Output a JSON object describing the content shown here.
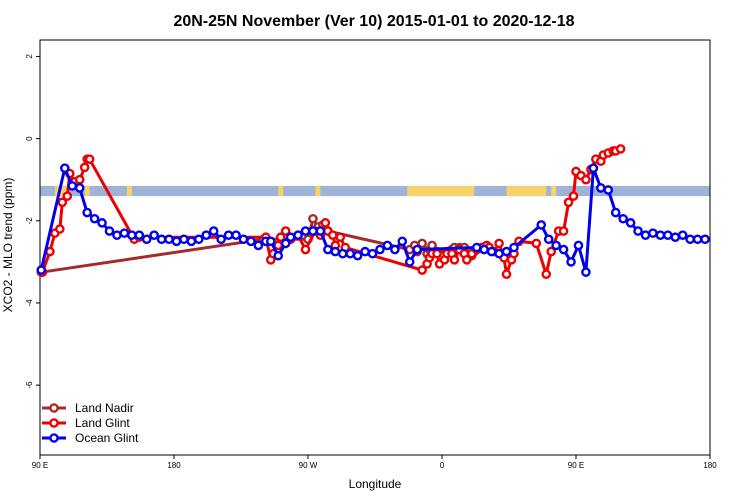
{
  "chart_data": {
    "type": "line",
    "title": "20N-25N November (Ver 10)   2015-01-01 to 2020-12-18",
    "xlabel": "Longitude",
    "ylabel": "XCO2 - MLO trend (ppm)",
    "xlim": [
      -90,
      180
    ],
    "ylim": [
      -7.7,
      2.4
    ],
    "x_ticks": [
      {
        "value": -90,
        "label": "90 E"
      },
      {
        "value": -36,
        "label": "180"
      },
      {
        "value": 18,
        "label": "90 W"
      },
      {
        "value": 72,
        "label": "0"
      },
      {
        "value": 126,
        "label": "90 E"
      },
      {
        "value": 180,
        "label": "180"
      }
    ],
    "y_ticks": [
      {
        "value": 2,
        "label": "2"
      },
      {
        "value": 0,
        "label": "0"
      },
      {
        "value": -2,
        "label": "-2"
      },
      {
        "value": -4,
        "label": "-4"
      },
      {
        "value": -6,
        "label": "-6"
      }
    ],
    "land_strip": {
      "y_top": -1.15,
      "y_bottom": -1.4,
      "ocean_color": "#9fb3d6",
      "land_color": "#f6d36a",
      "land_ranges": [
        [
          -84,
          -79
        ],
        [
          -72,
          -70
        ],
        [
          -55,
          -53
        ],
        [
          6,
          8
        ],
        [
          21,
          23
        ],
        [
          58,
          85
        ],
        [
          98,
          114
        ],
        [
          116,
          118
        ]
      ]
    },
    "series": [
      {
        "name": "Land Nadir",
        "color": "#a52a2a",
        "x": [
          -89.5,
          0,
          18,
          20,
          22,
          24,
          25,
          26,
          59,
          61,
          62,
          64,
          66,
          67,
          68,
          70,
          74,
          76,
          77,
          79,
          81,
          84,
          85
        ],
        "y": [
          -3.25,
          -2.45,
          -2.45,
          -1.95,
          -2.15,
          -2.1,
          -2.2,
          -2.25,
          -2.7,
          -2.6,
          -2.75,
          -2.55,
          -2.8,
          -2.7,
          -2.6,
          -2.75,
          -2.75,
          -2.7,
          -2.65,
          -2.65,
          -2.65,
          -2.85,
          -2.75
        ]
      },
      {
        "name": "Land Glint",
        "color": "#ee0000",
        "x": [
          -89,
          -86,
          -84,
          -82,
          -81,
          -79,
          -78,
          -76,
          -74,
          -72,
          -71,
          -70,
          -52,
          -50,
          1,
          3,
          4,
          6,
          7,
          9,
          11,
          14,
          17,
          21,
          23,
          25,
          26,
          28,
          29,
          31,
          33,
          64,
          66,
          67,
          68,
          70,
          71,
          73,
          74,
          76,
          77,
          79,
          81,
          82,
          84,
          86,
          88,
          90,
          91,
          93,
          95,
          97,
          98,
          100,
          101,
          103,
          110,
          114,
          116,
          119,
          121,
          123,
          125,
          126,
          128,
          130,
          132,
          134,
          136,
          137,
          139,
          141,
          142,
          144
        ],
        "y": [
          -3.25,
          -2.75,
          -2.3,
          -2.2,
          -1.55,
          -1.4,
          -0.85,
          -1.05,
          -1.0,
          -0.7,
          -0.5,
          -0.5,
          -2.45,
          -2.4,
          -2.4,
          -2.95,
          -2.8,
          -2.6,
          -2.4,
          -2.25,
          -2.45,
          -2.35,
          -2.7,
          -2.25,
          -2.35,
          -2.05,
          -2.25,
          -2.35,
          -2.6,
          -2.4,
          -2.65,
          -3.2,
          -3.05,
          -2.9,
          -2.8,
          -2.8,
          -3.05,
          -2.95,
          -2.8,
          -2.8,
          -2.95,
          -2.7,
          -2.8,
          -2.95,
          -2.8,
          -2.7,
          -2.65,
          -2.6,
          -2.65,
          -2.75,
          -2.55,
          -2.9,
          -3.3,
          -2.95,
          -2.8,
          -2.5,
          -2.55,
          -3.3,
          -2.75,
          -2.25,
          -2.25,
          -1.55,
          -1.4,
          -0.8,
          -0.9,
          -1.0,
          -0.75,
          -0.5,
          -0.55,
          -0.4,
          -0.35,
          -0.3,
          -0.3,
          -0.25
        ]
      },
      {
        "name": "Ocean Glint",
        "color": "#0000ee",
        "x": [
          -89.5,
          -80,
          -77,
          -74,
          -71,
          -68,
          -65,
          -62,
          -59,
          -56,
          -53,
          -50,
          -47,
          -44,
          -41,
          -38,
          -35,
          -32,
          -29,
          -26,
          -23,
          -20,
          -17,
          -14,
          -11,
          -8,
          -5,
          -2,
          1,
          3,
          6,
          9,
          11,
          14,
          17,
          20,
          23,
          26,
          29,
          32,
          35,
          38,
          41,
          44,
          47,
          50,
          53,
          56,
          59,
          62,
          86,
          89,
          92,
          95,
          98,
          101,
          112,
          115,
          118,
          121,
          124,
          127,
          130,
          133,
          136,
          139,
          142,
          145,
          148,
          151,
          154,
          157,
          160,
          163,
          166,
          169,
          172,
          175,
          178
        ],
        "y": [
          -3.2,
          -0.72,
          -1.15,
          -1.2,
          -1.8,
          -1.95,
          -2.05,
          -2.25,
          -2.35,
          -2.3,
          -2.35,
          -2.35,
          -2.45,
          -2.35,
          -2.45,
          -2.45,
          -2.5,
          -2.45,
          -2.5,
          -2.45,
          -2.35,
          -2.25,
          -2.45,
          -2.35,
          -2.35,
          -2.45,
          -2.5,
          -2.6,
          -2.5,
          -2.5,
          -2.85,
          -2.55,
          -2.4,
          -2.35,
          -2.25,
          -2.25,
          -2.25,
          -2.7,
          -2.75,
          -2.8,
          -2.8,
          -2.85,
          -2.75,
          -2.8,
          -2.7,
          -2.6,
          -2.7,
          -2.5,
          -3.0,
          -2.7,
          -2.65,
          -2.7,
          -2.75,
          -2.8,
          -2.75,
          -2.65,
          -2.1,
          -2.45,
          -2.6,
          -2.7,
          -3.0,
          -2.6,
          -3.25,
          -0.72,
          -1.2,
          -1.25,
          -1.8,
          -1.95,
          -2.05,
          -2.25,
          -2.35,
          -2.3,
          -2.35,
          -2.35,
          -2.4,
          -2.35,
          -2.45,
          -2.45,
          -2.45
        ]
      }
    ],
    "legend": {
      "position": "bottom-left",
      "entries": [
        "Land Nadir",
        "Land Glint",
        "Ocean Glint"
      ]
    }
  }
}
